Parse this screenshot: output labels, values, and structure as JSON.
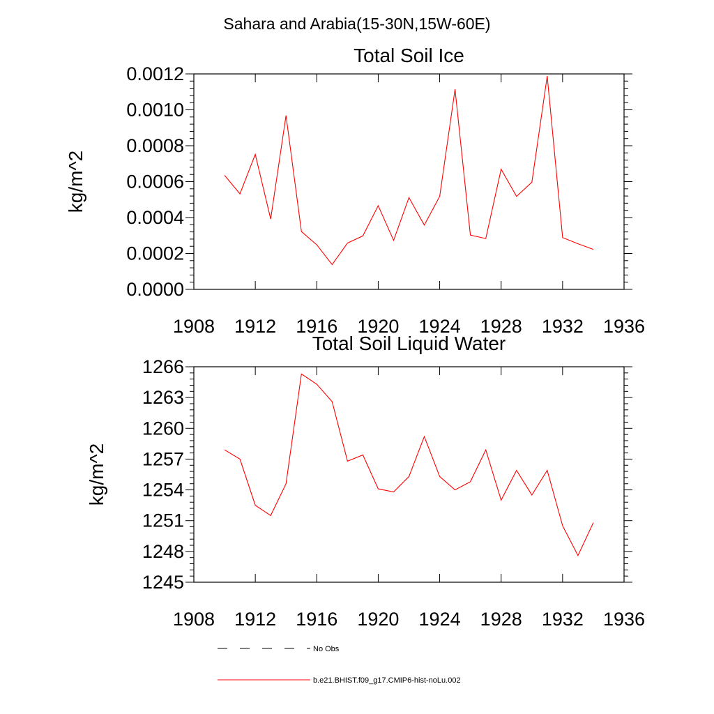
{
  "figure_title": "Sahara and Arabia(15-30N,15W-60E)",
  "legend": {
    "entries": [
      {
        "label": "No Obs",
        "style": "dashed",
        "color": "#000000"
      },
      {
        "label": "b.e21.BHIST.f09_g17.CMIP6-hist-noLu.002",
        "style": "solid",
        "color": "#ff0000"
      }
    ]
  },
  "chart_data": [
    {
      "type": "line",
      "title": "Total Soil Ice",
      "xlabel": "",
      "ylabel": "kg/m^2",
      "xlim": [
        1908,
        1936
      ],
      "ylim": [
        0,
        0.0012
      ],
      "xticks": [
        1908,
        1912,
        1916,
        1920,
        1924,
        1928,
        1932,
        1936
      ],
      "yticks": [
        "0.0000",
        "0.0002",
        "0.0004",
        "0.0006",
        "0.0008",
        "0.0010",
        "0.0012"
      ],
      "grid": false,
      "series": [
        {
          "color": "#ff0000",
          "x": [
            1910,
            1911,
            1912,
            1913,
            1914,
            1915,
            1916,
            1917,
            1918,
            1919,
            1920,
            1921,
            1922,
            1923,
            1924,
            1925,
            1926,
            1927,
            1928,
            1929,
            1930,
            1931,
            1932,
            1933,
            1934
          ],
          "values": [
            0.000635,
            0.000532,
            0.000752,
            0.000392,
            0.000968,
            0.000322,
            0.000248,
            0.000138,
            0.000258,
            0.000298,
            0.000466,
            0.000273,
            0.000511,
            0.000358,
            0.000518,
            0.001114,
            0.000302,
            0.000283,
            0.000669,
            0.000518,
            0.000597,
            0.001188,
            0.000288,
            0.000254,
            0.000223
          ]
        }
      ]
    },
    {
      "type": "line",
      "title": "Total Soil Liquid Water",
      "xlabel": "",
      "ylabel": "kg/m^2",
      "xlim": [
        1908,
        1936
      ],
      "ylim": [
        1245,
        1266
      ],
      "xticks": [
        1908,
        1912,
        1916,
        1920,
        1924,
        1928,
        1932,
        1936
      ],
      "yticks": [
        "1245",
        "1248",
        "1251",
        "1254",
        "1257",
        "1260",
        "1263",
        "1266"
      ],
      "grid": false,
      "series": [
        {
          "color": "#ff0000",
          "x": [
            1910,
            1911,
            1912,
            1913,
            1914,
            1915,
            1916,
            1917,
            1918,
            1919,
            1920,
            1921,
            1922,
            1923,
            1924,
            1925,
            1926,
            1927,
            1928,
            1929,
            1930,
            1931,
            1932,
            1933,
            1934
          ],
          "values": [
            1257.9,
            1257.0,
            1252.5,
            1251.5,
            1254.6,
            1265.3,
            1264.3,
            1262.6,
            1256.8,
            1257.4,
            1254.1,
            1253.8,
            1255.3,
            1259.2,
            1255.3,
            1254.0,
            1254.8,
            1257.9,
            1253.0,
            1255.9,
            1253.5,
            1255.9,
            1250.5,
            1247.6,
            1250.8
          ]
        }
      ]
    }
  ]
}
